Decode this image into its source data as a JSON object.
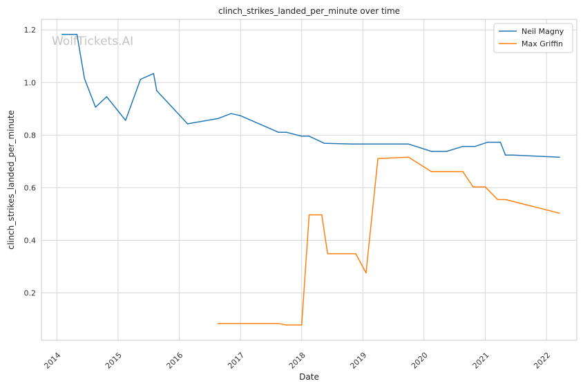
{
  "watermark": "WolfTickets.AI",
  "colors": {
    "neil": "#1f77b4",
    "max": "#ff7f0e",
    "grid": "#d6d6d6",
    "frame": "#c8c8c8"
  },
  "chart_data": {
    "type": "line",
    "title": "clinch_strikes_landed_per_minute over time",
    "xlabel": "Date",
    "ylabel": "clinch_strikes_landed_per_minute",
    "xlim": [
      "2013-10-01",
      "2022-07-01"
    ],
    "ylim": [
      0.02,
      1.24
    ],
    "x_ticks": [
      "2014-01-01",
      "2015-01-01",
      "2016-01-01",
      "2017-01-01",
      "2018-01-01",
      "2019-01-01",
      "2020-01-01",
      "2021-01-01",
      "2022-01-01"
    ],
    "x_tick_labels": [
      "2014",
      "2015",
      "2016",
      "2017",
      "2018",
      "2019",
      "2020",
      "2021",
      "2022"
    ],
    "y_ticks": [
      0.2,
      0.4,
      0.6,
      0.8,
      1.0,
      1.2
    ],
    "y_tick_labels": [
      "0.2",
      "0.4",
      "0.6",
      "0.8",
      "1.0",
      "1.2"
    ],
    "grid": true,
    "legend": "top-right",
    "series": [
      {
        "name": "Neil Magny",
        "color": "#1f77b4",
        "points": [
          [
            "2014-02-01",
            1.183
          ],
          [
            "2014-05-01",
            1.183
          ],
          [
            "2014-06-15",
            1.015
          ],
          [
            "2014-08-20",
            0.906
          ],
          [
            "2014-10-25",
            0.946
          ],
          [
            "2015-02-15",
            0.856
          ],
          [
            "2015-05-15",
            1.012
          ],
          [
            "2015-08-01",
            1.034
          ],
          [
            "2015-08-20",
            0.969
          ],
          [
            "2016-02-20",
            0.843
          ],
          [
            "2016-08-20",
            0.863
          ],
          [
            "2016-11-05",
            0.882
          ],
          [
            "2016-12-31",
            0.874
          ],
          [
            "2017-08-15",
            0.811
          ],
          [
            "2017-10-01",
            0.811
          ],
          [
            "2017-12-31",
            0.796
          ],
          [
            "2018-02-15",
            0.796
          ],
          [
            "2018-05-15",
            0.769
          ],
          [
            "2018-11-01",
            0.766
          ],
          [
            "2019-10-01",
            0.766
          ],
          [
            "2020-02-15",
            0.738
          ],
          [
            "2020-05-15",
            0.738
          ],
          [
            "2020-08-20",
            0.757
          ],
          [
            "2020-11-01",
            0.757
          ],
          [
            "2021-01-15",
            0.773
          ],
          [
            "2021-04-01",
            0.773
          ],
          [
            "2021-05-01",
            0.724
          ],
          [
            "2021-06-15",
            0.724
          ],
          [
            "2022-03-20",
            0.716
          ]
        ]
      },
      {
        "name": "Max Griffin",
        "color": "#ff7f0e",
        "points": [
          [
            "2016-08-20",
            0.084
          ],
          [
            "2017-08-15",
            0.084
          ],
          [
            "2017-10-01",
            0.078
          ],
          [
            "2018-01-01",
            0.078
          ],
          [
            "2018-02-15",
            0.497
          ],
          [
            "2018-05-01",
            0.497
          ],
          [
            "2018-06-05",
            0.349
          ],
          [
            "2018-11-20",
            0.349
          ],
          [
            "2019-01-20",
            0.276
          ],
          [
            "2019-04-01",
            0.711
          ],
          [
            "2019-10-01",
            0.716
          ],
          [
            "2020-02-15",
            0.661
          ],
          [
            "2020-08-20",
            0.661
          ],
          [
            "2020-10-20",
            0.603
          ],
          [
            "2021-01-01",
            0.603
          ],
          [
            "2021-03-15",
            0.555
          ],
          [
            "2021-05-01",
            0.555
          ],
          [
            "2022-03-20",
            0.503
          ]
        ]
      }
    ]
  }
}
